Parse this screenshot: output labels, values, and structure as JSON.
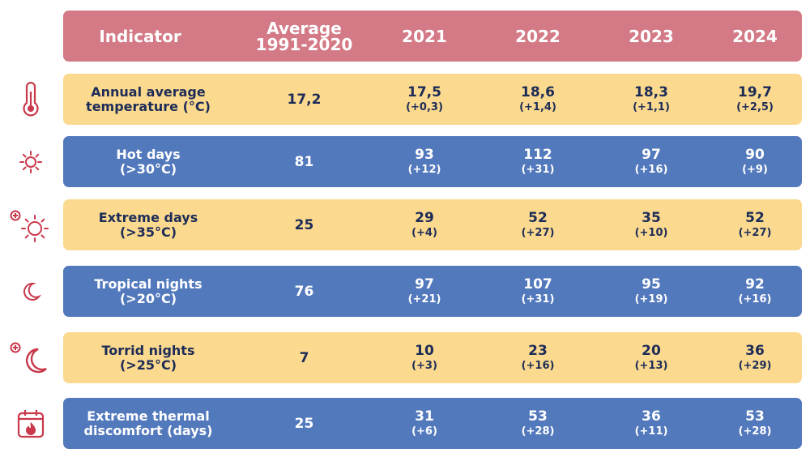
{
  "colors": {
    "header_bg": "#d37a86",
    "row_yellow": "#fbd98e",
    "row_blue": "#5379bd",
    "icon": "#c9384b",
    "dark_text": "#1d2c57"
  },
  "header": {
    "indicator": "Indicator",
    "average_line1": "Average",
    "average_line2": "1991-2020",
    "years": [
      "2021",
      "2022",
      "2023",
      "2024"
    ]
  },
  "chart_data": {
    "type": "table",
    "columns": [
      "Indicator",
      "Average 1991-2020",
      "2021",
      "2022",
      "2023",
      "2024"
    ],
    "rows": [
      {
        "icon": "thermometer-icon",
        "label_line1": "Annual average",
        "label_line2": "temperature (°C)",
        "average": "17,2",
        "values": [
          "17,5",
          "18,6",
          "18,3",
          "19,7"
        ],
        "diffs": [
          "(+0,3)",
          "(+1,4)",
          "(+1,1)",
          "(+2,5)"
        ]
      },
      {
        "icon": "sun-icon",
        "label_line1": "Hot days",
        "label_line2": "(>30°C)",
        "average": "81",
        "values": [
          "93",
          "112",
          "97",
          "90"
        ],
        "diffs": [
          "(+12)",
          "(+31)",
          "(+16)",
          "(+9)"
        ]
      },
      {
        "icon": "sun-plus-icon",
        "label_line1": "Extreme days",
        "label_line2": "(>35°C)",
        "average": "25",
        "values": [
          "29",
          "52",
          "35",
          "52"
        ],
        "diffs": [
          "(+4)",
          "(+27)",
          "(+10)",
          "(+27)"
        ]
      },
      {
        "icon": "moon-icon",
        "label_line1": "Tropical nights",
        "label_line2": "(>20°C)",
        "average": "76",
        "values": [
          "97",
          "107",
          "95",
          "92"
        ],
        "diffs": [
          "(+21)",
          "(+31)",
          "(+19)",
          "(+16)"
        ]
      },
      {
        "icon": "moon-plus-icon",
        "label_line1": "Torrid nights",
        "label_line2": "(>25°C)",
        "average": "7",
        "values": [
          "10",
          "23",
          "20",
          "36"
        ],
        "diffs": [
          "(+3)",
          "(+16)",
          "(+13)",
          "(+29)"
        ]
      },
      {
        "icon": "calendar-fire-icon",
        "label_line1": "Extreme thermal",
        "label_line2": "discomfort (days)",
        "average": "25",
        "values": [
          "31",
          "53",
          "36",
          "53"
        ],
        "diffs": [
          "(+6)",
          "(+28)",
          "(+11)",
          "(+28)"
        ]
      }
    ]
  }
}
